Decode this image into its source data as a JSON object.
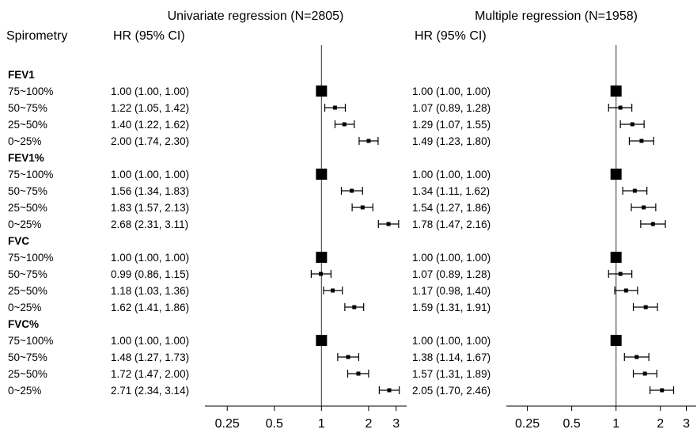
{
  "chart_data": [
    {
      "type": "forest",
      "title": "Univariate regression (N=2805)",
      "row_header": "Spirometry",
      "column_header": "HR (95% CI)",
      "x_scale": "log",
      "xlim": [
        0.18,
        3.5
      ],
      "xticks": [
        0.25,
        0.5,
        1,
        2,
        3
      ],
      "xtick_labels": [
        "0.25",
        "0.5",
        "1",
        "2",
        "3"
      ],
      "reference_line": 1,
      "groups": [
        {
          "name": "FEV1",
          "rows": [
            {
              "label": "75~100%",
              "hr": 1.0,
              "lo": 1.0,
              "hi": 1.0,
              "text": "1.00 (1.00, 1.00)"
            },
            {
              "label": "50~75%",
              "hr": 1.22,
              "lo": 1.05,
              "hi": 1.42,
              "text": "1.22 (1.05, 1.42)"
            },
            {
              "label": "25~50%",
              "hr": 1.4,
              "lo": 1.22,
              "hi": 1.62,
              "text": "1.40 (1.22, 1.62)"
            },
            {
              "label": "0~25%",
              "hr": 2.0,
              "lo": 1.74,
              "hi": 2.3,
              "text": "2.00 (1.74, 2.30)"
            }
          ]
        },
        {
          "name": "FEV1%",
          "rows": [
            {
              "label": "75~100%",
              "hr": 1.0,
              "lo": 1.0,
              "hi": 1.0,
              "text": "1.00 (1.00, 1.00)"
            },
            {
              "label": "50~75%",
              "hr": 1.56,
              "lo": 1.34,
              "hi": 1.83,
              "text": "1.56 (1.34, 1.83)"
            },
            {
              "label": "25~50%",
              "hr": 1.83,
              "lo": 1.57,
              "hi": 2.13,
              "text": "1.83 (1.57, 2.13)"
            },
            {
              "label": "0~25%",
              "hr": 2.68,
              "lo": 2.31,
              "hi": 3.11,
              "text": "2.68 (2.31, 3.11)"
            }
          ]
        },
        {
          "name": "FVC",
          "rows": [
            {
              "label": "75~100%",
              "hr": 1.0,
              "lo": 1.0,
              "hi": 1.0,
              "text": "1.00 (1.00, 1.00)"
            },
            {
              "label": "50~75%",
              "hr": 0.99,
              "lo": 0.86,
              "hi": 1.15,
              "text": "0.99 (0.86, 1.15)"
            },
            {
              "label": "25~50%",
              "hr": 1.18,
              "lo": 1.03,
              "hi": 1.36,
              "text": "1.18 (1.03, 1.36)"
            },
            {
              "label": "0~25%",
              "hr": 1.62,
              "lo": 1.41,
              "hi": 1.86,
              "text": "1.62 (1.41, 1.86)"
            }
          ]
        },
        {
          "name": "FVC%",
          "rows": [
            {
              "label": "75~100%",
              "hr": 1.0,
              "lo": 1.0,
              "hi": 1.0,
              "text": "1.00 (1.00, 1.00)"
            },
            {
              "label": "50~75%",
              "hr": 1.48,
              "lo": 1.27,
              "hi": 1.73,
              "text": "1.48 (1.27, 1.73)"
            },
            {
              "label": "25~50%",
              "hr": 1.72,
              "lo": 1.47,
              "hi": 2.0,
              "text": "1.72 (1.47, 2.00)"
            },
            {
              "label": "0~25%",
              "hr": 2.71,
              "lo": 2.34,
              "hi": 3.14,
              "text": "2.71 (2.34, 3.14)"
            }
          ]
        }
      ]
    },
    {
      "type": "forest",
      "title": "Multiple regression (N=1958)",
      "column_header": "HR (95% CI)",
      "x_scale": "log",
      "xlim": [
        0.18,
        3.5
      ],
      "xticks": [
        0.25,
        0.5,
        1,
        2,
        3
      ],
      "xtick_labels": [
        "0.25",
        "0.5",
        "1",
        "2",
        "3"
      ],
      "reference_line": 1,
      "groups": [
        {
          "name": "FEV1",
          "rows": [
            {
              "label": "75~100%",
              "hr": 1.0,
              "lo": 1.0,
              "hi": 1.0,
              "text": "1.00 (1.00, 1.00)"
            },
            {
              "label": "50~75%",
              "hr": 1.07,
              "lo": 0.89,
              "hi": 1.28,
              "text": "1.07 (0.89, 1.28)"
            },
            {
              "label": "25~50%",
              "hr": 1.29,
              "lo": 1.07,
              "hi": 1.55,
              "text": "1.29 (1.07, 1.55)"
            },
            {
              "label": "0~25%",
              "hr": 1.49,
              "lo": 1.23,
              "hi": 1.8,
              "text": "1.49 (1.23, 1.80)"
            }
          ]
        },
        {
          "name": "FEV1%",
          "rows": [
            {
              "label": "75~100%",
              "hr": 1.0,
              "lo": 1.0,
              "hi": 1.0,
              "text": "1.00 (1.00, 1.00)"
            },
            {
              "label": "50~75%",
              "hr": 1.34,
              "lo": 1.11,
              "hi": 1.62,
              "text": "1.34 (1.11, 1.62)"
            },
            {
              "label": "25~50%",
              "hr": 1.54,
              "lo": 1.27,
              "hi": 1.86,
              "text": "1.54 (1.27, 1.86)"
            },
            {
              "label": "0~25%",
              "hr": 1.78,
              "lo": 1.47,
              "hi": 2.16,
              "text": "1.78 (1.47, 2.16)"
            }
          ]
        },
        {
          "name": "FVC",
          "rows": [
            {
              "label": "75~100%",
              "hr": 1.0,
              "lo": 1.0,
              "hi": 1.0,
              "text": "1.00 (1.00, 1.00)"
            },
            {
              "label": "50~75%",
              "hr": 1.07,
              "lo": 0.89,
              "hi": 1.28,
              "text": "1.07 (0.89, 1.28)"
            },
            {
              "label": "25~50%",
              "hr": 1.17,
              "lo": 0.98,
              "hi": 1.4,
              "text": "1.17 (0.98, 1.40)"
            },
            {
              "label": "0~25%",
              "hr": 1.59,
              "lo": 1.31,
              "hi": 1.91,
              "text": "1.59 (1.31, 1.91)"
            }
          ]
        },
        {
          "name": "FVC%",
          "rows": [
            {
              "label": "75~100%",
              "hr": 1.0,
              "lo": 1.0,
              "hi": 1.0,
              "text": "1.00 (1.00, 1.00)"
            },
            {
              "label": "50~75%",
              "hr": 1.38,
              "lo": 1.14,
              "hi": 1.67,
              "text": "1.38 (1.14, 1.67)"
            },
            {
              "label": "25~50%",
              "hr": 1.57,
              "lo": 1.31,
              "hi": 1.89,
              "text": "1.57 (1.31, 1.89)"
            },
            {
              "label": "0~25%",
              "hr": 2.05,
              "lo": 1.7,
              "hi": 2.46,
              "text": "2.05 (1.70, 2.46)"
            }
          ]
        }
      ]
    }
  ]
}
